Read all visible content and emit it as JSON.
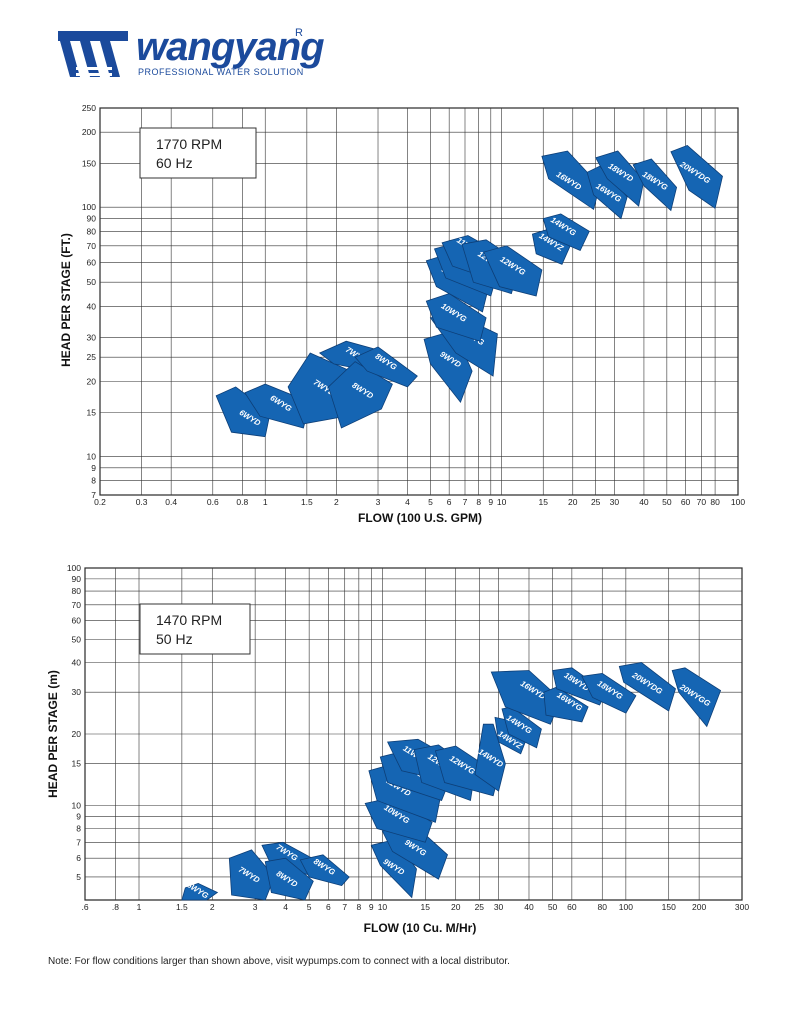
{
  "brand": {
    "name": "wangyang",
    "registered": "R",
    "tagline": "PROFESSIONAL WATER SOLUTION",
    "color": "#1b4a9c"
  },
  "note": "Note: For flow conditions larger than shown above, visit wypumps.com to connect with a local distributor.",
  "chart_data": [
    {
      "type": "area",
      "scale": "log-log",
      "info_line1": "1770 RPM",
      "info_line2": "60 Hz",
      "xlabel": "FLOW (100 U.S. GPM)",
      "ylabel": "HEAD PER STAGE (FT.)",
      "xlim": [
        0.2,
        100
      ],
      "ylim": [
        7,
        250
      ],
      "xticks": [
        0.2,
        0.3,
        0.4,
        0.6,
        0.8,
        1,
        1.5,
        2,
        3,
        4,
        5,
        6,
        7,
        8,
        9,
        10,
        15,
        20,
        25,
        30,
        40,
        50,
        60,
        70,
        80,
        100
      ],
      "xtick_labels": [
        "0.2",
        "0.3",
        "0.4",
        "0.6",
        "0.8",
        "1",
        "1.5",
        "2",
        "3",
        "4",
        "5",
        "6",
        "7",
        "8",
        "9",
        "10",
        "15",
        "20",
        "25",
        "30",
        "40",
        "50",
        "60",
        "70",
        "80",
        "100"
      ],
      "yticks": [
        7,
        8,
        9,
        10,
        15,
        20,
        25,
        30,
        40,
        50,
        60,
        70,
        80,
        90,
        100,
        150,
        200,
        250
      ],
      "ytick_labels": [
        "7",
        "8",
        "9",
        "10",
        "15",
        "20",
        "25",
        "30",
        "40",
        "50",
        "60",
        "70",
        "80",
        "90",
        "100",
        "150",
        "200",
        "250"
      ],
      "fill_color": "#1565b3",
      "series": [
        {
          "name": "6WYD",
          "x": [
            0.62,
            0.75,
            1.05,
            1.0,
            0.72
          ],
          "y": [
            17.5,
            19.0,
            15.0,
            12.0,
            12.5
          ],
          "label_x": 0.85,
          "label_y": 14.0
        },
        {
          "name": "6WYG",
          "x": [
            0.82,
            1.0,
            1.55,
            1.45,
            0.95
          ],
          "y": [
            18.0,
            19.5,
            16.5,
            13.0,
            14.5
          ],
          "label_x": 1.15,
          "label_y": 16.0
        },
        {
          "name": "7WYD",
          "x": [
            1.25,
            1.55,
            2.3,
            2.2,
            1.45
          ],
          "y": [
            19.0,
            26.0,
            22.0,
            14.5,
            13.5
          ],
          "label_x": 1.75,
          "label_y": 18.5
        },
        {
          "name": "7WYG",
          "x": [
            1.7,
            2.2,
            3.1,
            2.8,
            1.95
          ],
          "y": [
            26.0,
            29.0,
            26.5,
            22.0,
            23.5
          ],
          "label_x": 2.4,
          "label_y": 25.0
        },
        {
          "name": "8WYD",
          "x": [
            1.85,
            2.4,
            3.45,
            3.1,
            2.1
          ],
          "y": [
            19.0,
            24.0,
            19.5,
            15.5,
            13.0
          ],
          "label_x": 2.55,
          "label_y": 18.0
        },
        {
          "name": "8WYG",
          "x": [
            2.4,
            3.0,
            4.4,
            4.0,
            2.7
          ],
          "y": [
            25.0,
            27.5,
            21.0,
            19.0,
            22.0
          ],
          "label_x": 3.2,
          "label_y": 23.5
        },
        {
          "name": "9WYD",
          "x": [
            4.7,
            6.3,
            7.5,
            6.7,
            5.0
          ],
          "y": [
            29.5,
            32.0,
            22.0,
            16.5,
            23.5
          ],
          "label_x": 6.0,
          "label_y": 24.0
        },
        {
          "name": "9WYG",
          "x": [
            5.0,
            6.5,
            9.6,
            9.2,
            6.4
          ],
          "y": [
            36.0,
            37.0,
            31.0,
            21.0,
            26.0
          ],
          "label_x": 7.5,
          "label_y": 29.5
        },
        {
          "name": "10WYG",
          "x": [
            4.8,
            6.0,
            8.6,
            8.1,
            5.3
          ],
          "y": [
            42.0,
            45.0,
            36.0,
            29.0,
            33.0
          ],
          "label_x": 6.2,
          "label_y": 37.0
        },
        {
          "name": "11WYD",
          "x": [
            4.8,
            6.0,
            8.9,
            8.3,
            5.3
          ],
          "y": [
            61.0,
            65.0,
            50.0,
            38.0,
            48.0
          ],
          "label_x": 6.2,
          "label_y": 52.0
        },
        {
          "name": "11WYZ",
          "x": [
            5.2,
            6.5,
            9.8,
            9.0,
            5.8
          ],
          "y": [
            68.0,
            72.0,
            58.0,
            44.0,
            52.0
          ],
          "label_x": 6.6,
          "label_y": 62.0
        },
        {
          "name": "11WYG",
          "x": [
            5.6,
            7.2,
            10.5,
            9.8,
            6.2
          ],
          "y": [
            72.0,
            77.0,
            63.0,
            50.0,
            58.0
          ],
          "label_x": 7.2,
          "label_y": 68.0
        },
        {
          "name": "12WYZ",
          "x": [
            6.8,
            8.6,
            12.0,
            11.0,
            7.6
          ],
          "y": [
            71.0,
            74.0,
            60.0,
            45.0,
            50.0
          ],
          "label_x": 8.8,
          "label_y": 60.0
        },
        {
          "name": "12WYG",
          "x": [
            8.4,
            10.5,
            14.8,
            14.0,
            9.8
          ],
          "y": [
            66.0,
            70.0,
            56.0,
            44.0,
            48.0
          ],
          "label_x": 11.0,
          "label_y": 57.0
        },
        {
          "name": "14WYZ",
          "x": [
            13.5,
            16.0,
            19.5,
            18.0,
            14.0
          ],
          "y": [
            78.0,
            82.0,
            70.0,
            59.0,
            65.0
          ],
          "label_x": 16.0,
          "label_y": 71.0
        },
        {
          "name": "14WYG",
          "x": [
            15.0,
            17.8,
            23.5,
            21.5,
            15.8
          ],
          "y": [
            90.0,
            94.0,
            80.0,
            67.0,
            76.0
          ],
          "label_x": 18.0,
          "label_y": 82.0
        },
        {
          "name": "16WYD",
          "x": [
            14.8,
            19.0,
            26.0,
            24.5,
            15.8
          ],
          "y": [
            160.0,
            168.0,
            122.0,
            98.0,
            130.0
          ],
          "label_x": 19.0,
          "label_y": 125.0
        },
        {
          "name": "16WYG",
          "x": [
            23.0,
            26.0,
            34.0,
            32.0,
            24.5
          ],
          "y": [
            138.0,
            146.0,
            110.0,
            90.0,
            112.0
          ],
          "label_x": 28.0,
          "label_y": 112.0
        },
        {
          "name": "18WYD",
          "x": [
            25.0,
            31.0,
            40.0,
            38.0,
            28.0
          ],
          "y": [
            158.0,
            168.0,
            128.0,
            101.0,
            130.0
          ],
          "label_x": 31.5,
          "label_y": 135.0
        },
        {
          "name": "18WYG",
          "x": [
            36.0,
            43.0,
            55.0,
            52.0,
            40.0
          ],
          "y": [
            148.0,
            156.0,
            120.0,
            97.0,
            122.0
          ],
          "label_x": 44.0,
          "label_y": 125.0
        },
        {
          "name": "20WYDG",
          "x": [
            52.0,
            61.0,
            86.0,
            80.0,
            62.0
          ],
          "y": [
            167.0,
            177.0,
            133.0,
            99.0,
            117.0
          ],
          "label_x": 65.0,
          "label_y": 135.0
        }
      ]
    },
    {
      "type": "area",
      "scale": "log-log",
      "info_line1": "1470 RPM",
      "info_line2": "50 Hz",
      "xlabel": "FLOW (10 Cu. M/Hr)",
      "ylabel": "HEAD PER STAGE (m)",
      "xlim": [
        0.6,
        300
      ],
      "ylim": [
        4,
        100
      ],
      "xticks": [
        0.6,
        0.8,
        1,
        1.5,
        2,
        3,
        4,
        5,
        6,
        7,
        8,
        9,
        10,
        15,
        20,
        25,
        30,
        40,
        50,
        60,
        80,
        100,
        150,
        200,
        300
      ],
      "xtick_labels": [
        ".6",
        ".8",
        "1",
        "1.5",
        "2",
        "3",
        "4",
        "5",
        "6",
        "7",
        "8",
        "9",
        "10",
        "15",
        "20",
        "25",
        "30",
        "40",
        "50",
        "60",
        "80",
        "100",
        "150",
        "200",
        "300"
      ],
      "yticks": [
        5,
        6,
        7,
        8,
        9,
        10,
        15,
        20,
        30,
        40,
        50,
        60,
        70,
        80,
        90,
        100
      ],
      "ytick_labels": [
        "5",
        "6",
        "7",
        "8",
        "9",
        "10",
        "15",
        "20",
        "30",
        "40",
        "50",
        "60",
        "70",
        "80",
        "90",
        "100"
      ],
      "fill_color": "#1565b3",
      "series": [
        {
          "name": "6WYG",
          "x": [
            1.55,
            1.75,
            2.1,
            1.9,
            1.5
          ],
          "y": [
            4.5,
            4.7,
            4.3,
            4.0,
            4.0
          ],
          "label_x": 1.72,
          "label_y": 4.3
        },
        {
          "name": "7WYD",
          "x": [
            2.35,
            2.9,
            3.6,
            3.3,
            2.4
          ],
          "y": [
            6.0,
            6.5,
            5.0,
            4.0,
            4.2
          ],
          "label_x": 2.8,
          "label_y": 5.0
        },
        {
          "name": "7WYG",
          "x": [
            3.2,
            3.9,
            5.3,
            5.0,
            3.5
          ],
          "y": [
            6.8,
            7.0,
            5.9,
            5.1,
            5.6
          ],
          "label_x": 4.0,
          "label_y": 6.2
        },
        {
          "name": "8WYD",
          "x": [
            3.3,
            4.0,
            5.2,
            4.8,
            3.5
          ],
          "y": [
            5.8,
            6.0,
            4.8,
            4.0,
            4.3
          ],
          "label_x": 4.0,
          "label_y": 4.8
        },
        {
          "name": "8WYG",
          "x": [
            4.6,
            5.7,
            7.3,
            6.8,
            5.0
          ],
          "y": [
            5.9,
            6.2,
            5.0,
            4.6,
            5.0
          ],
          "label_x": 5.7,
          "label_y": 5.4
        },
        {
          "name": "9WYD",
          "x": [
            9.0,
            11.3,
            13.8,
            13.2,
            9.8
          ],
          "y": [
            6.8,
            7.2,
            5.4,
            4.1,
            5.6
          ],
          "label_x": 11.0,
          "label_y": 5.4
        },
        {
          "name": "9WYG",
          "x": [
            10.0,
            13.5,
            18.5,
            17.0,
            11.0
          ],
          "y": [
            7.8,
            8.3,
            6.2,
            4.9,
            6.4
          ],
          "label_x": 13.5,
          "label_y": 6.5
        },
        {
          "name": "10WYG",
          "x": [
            8.5,
            11.0,
            16.0,
            15.0,
            9.5
          ],
          "y": [
            10.2,
            10.8,
            8.5,
            7.0,
            8.0
          ],
          "label_x": 11.3,
          "label_y": 9.0
        },
        {
          "name": "11WYD",
          "x": [
            8.8,
            12.5,
            17.5,
            16.5,
            9.5
          ],
          "y": [
            14.0,
            15.5,
            11.5,
            8.5,
            10.5
          ],
          "label_x": 11.5,
          "label_y": 11.7
        },
        {
          "name": "11WYZ",
          "x": [
            9.8,
            13.0,
            19.0,
            17.5,
            10.5
          ],
          "y": [
            16.0,
            17.2,
            13.0,
            10.5,
            12.5
          ],
          "label_x": 13.0,
          "label_y": 14.0
        },
        {
          "name": "11WYG",
          "x": [
            10.5,
            14.0,
            21.0,
            19.5,
            12.0
          ],
          "y": [
            18.5,
            19.0,
            15.0,
            12.5,
            14.0
          ],
          "label_x": 13.5,
          "label_y": 16.0
        },
        {
          "name": "12WYZ",
          "x": [
            13.5,
            17.0,
            24.0,
            23.0,
            14.5
          ],
          "y": [
            17.2,
            18.0,
            14.0,
            10.5,
            12.5
          ],
          "label_x": 17.0,
          "label_y": 14.8
        },
        {
          "name": "12WYG",
          "x": [
            16.5,
            20.0,
            30.0,
            28.5,
            18.0
          ],
          "y": [
            17.0,
            17.8,
            13.5,
            11.0,
            12.5
          ],
          "label_x": 21.0,
          "label_y": 14.5
        },
        {
          "name": "14WYD",
          "x": [
            26.0,
            28.5,
            32.0,
            30.0,
            24.0
          ],
          "y": [
            22.0,
            22.0,
            15.0,
            11.5,
            13.5
          ],
          "label_x": 27.5,
          "label_y": 15.5
        },
        {
          "name": "14WYZ",
          "x": [
            29.0,
            32.0,
            39.0,
            37.0,
            30.0
          ],
          "y": [
            23.5,
            23.0,
            19.0,
            16.5,
            18.5
          ],
          "label_x": 33.0,
          "label_y": 18.5
        },
        {
          "name": "14WYG",
          "x": [
            31.0,
            34.0,
            45.0,
            43.0,
            33.0
          ],
          "y": [
            25.5,
            26.0,
            21.0,
            17.5,
            20.0
          ],
          "label_x": 36.0,
          "label_y": 21.5
        },
        {
          "name": "16WYD",
          "x": [
            28.0,
            40.0,
            54.0,
            49.0,
            32.0
          ],
          "y": [
            36.5,
            37.0,
            28.0,
            22.0,
            26.0
          ],
          "label_x": 41.0,
          "label_y": 30.0
        },
        {
          "name": "16WYG",
          "x": [
            46.0,
            52.0,
            70.0,
            66.0,
            47.0
          ],
          "y": [
            30.0,
            31.5,
            26.0,
            22.5,
            24.0
          ],
          "label_x": 58.0,
          "label_y": 26.8
        },
        {
          "name": "18WYD",
          "x": [
            50.0,
            60.0,
            83.0,
            78.0,
            52.0
          ],
          "y": [
            37.0,
            38.0,
            30.0,
            26.5,
            31.0
          ],
          "label_x": 62.0,
          "label_y": 32.5
        },
        {
          "name": "18WYG",
          "x": [
            66.0,
            80.0,
            110.0,
            100.0,
            73.0
          ],
          "y": [
            35.0,
            36.0,
            29.0,
            24.5,
            28.5
          ],
          "label_x": 85.0,
          "label_y": 30.0
        },
        {
          "name": "20WYDG",
          "x": [
            94.0,
            116.0,
            160.0,
            150.0,
            98.0
          ],
          "y": [
            38.5,
            40.0,
            31.0,
            25.0,
            33.0
          ],
          "label_x": 121.0,
          "label_y": 32.0
        },
        {
          "name": "20WYGG",
          "x": [
            155.0,
            175.0,
            245.0,
            215.0,
            165.0
          ],
          "y": [
            37.0,
            38.0,
            30.5,
            21.5,
            30.0
          ],
          "label_x": 190.0,
          "label_y": 28.5
        }
      ]
    }
  ]
}
